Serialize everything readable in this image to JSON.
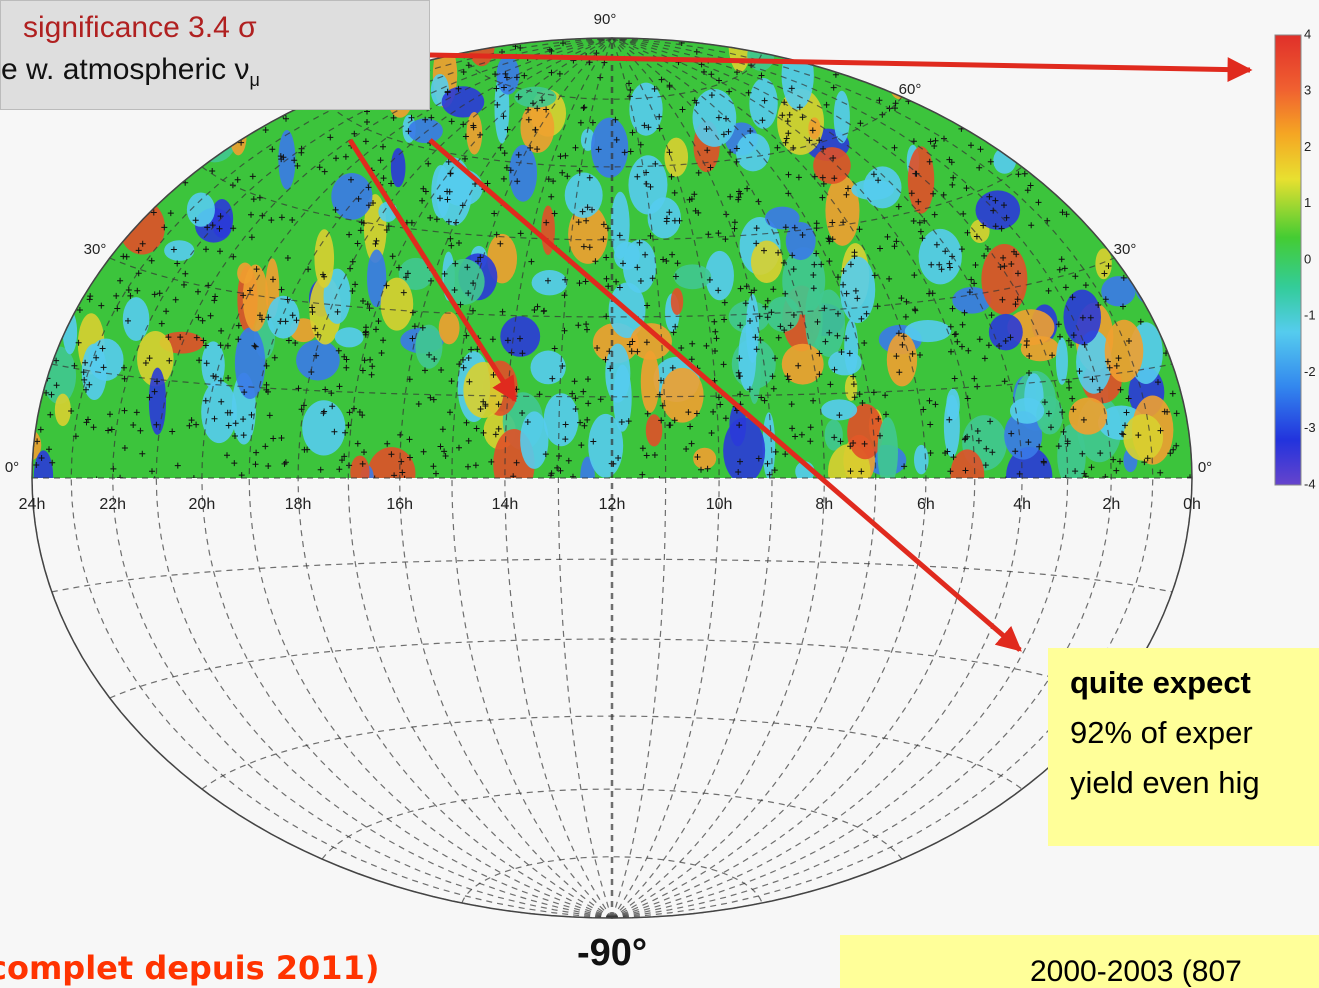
{
  "callout": {
    "line1": "significance 3.4 σ",
    "line2": "e w. atmospheric ν",
    "line2_sub": "μ"
  },
  "sky_map": {
    "dec_labels": {
      "top": "90°",
      "upper_right": "60°",
      "left_30": "30°",
      "right_30": "30°",
      "left_0": "0°",
      "right_0": "0°"
    },
    "ra_labels": [
      "24h",
      "22h",
      "20h",
      "18h",
      "16h",
      "14h",
      "12h",
      "10h",
      "8h",
      "6h",
      "4h",
      "2h",
      "0h"
    ],
    "south_pole": "-90°"
  },
  "colorbar": {
    "labels": [
      "4",
      "3",
      "2",
      "1",
      "0",
      "-1",
      "-2",
      "-3",
      "-4"
    ]
  },
  "note": {
    "title": "quite expect",
    "lines": [
      "92% of exper",
      "yield even hig"
    ]
  },
  "footer": {
    "period": "2000-2003 (807",
    "remark": "complet depuis 2011)"
  }
}
